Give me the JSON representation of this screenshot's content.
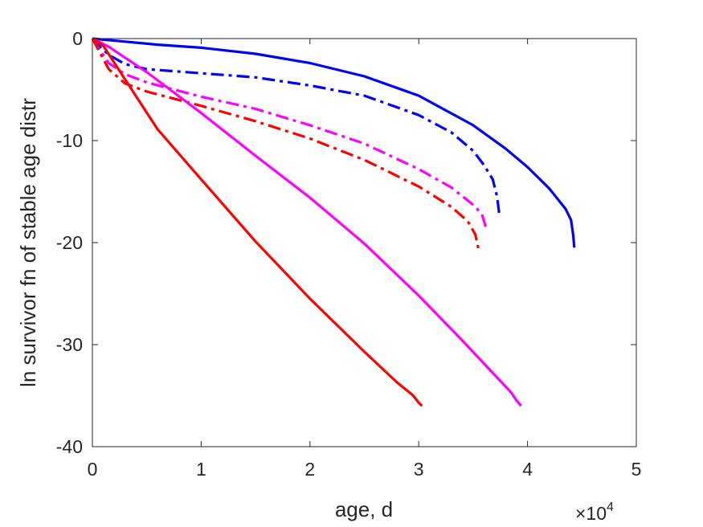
{
  "chart_data": {
    "type": "line",
    "title": "",
    "xlabel": "age, d",
    "ylabel": "ln survivor fn of stable age distr",
    "x_multiplier_label": {
      "base": "×10",
      "exponent": "4"
    },
    "xlim": [
      0,
      50000
    ],
    "ylim": [
      -40,
      0
    ],
    "xticks": [
      0,
      10000,
      20000,
      30000,
      40000,
      50000
    ],
    "xtick_labels": [
      "0",
      "1",
      "2",
      "3",
      "4",
      "5"
    ],
    "yticks": [
      0,
      -10,
      -20,
      -30,
      -40
    ],
    "ytick_labels": [
      "0",
      "-10",
      "-20",
      "-30",
      "-40"
    ],
    "grid": false,
    "legend": "none",
    "series": [
      {
        "color": "#0000ff",
        "style": "solid",
        "x": [
          0,
          3000,
          6000,
          10000,
          15000,
          20000,
          25000,
          30000,
          35000,
          38000,
          40000,
          42000,
          43500,
          44000,
          44200,
          44300
        ],
        "y": [
          0,
          -0.3,
          -0.6,
          -0.9,
          -1.5,
          -2.4,
          -3.7,
          -5.6,
          -8.5,
          -10.8,
          -12.6,
          -14.7,
          -16.7,
          -17.8,
          -19.3,
          -20.5
        ]
      },
      {
        "color": "#0000ff",
        "style": "dashdot",
        "x": [
          0,
          700,
          1500,
          3000,
          5000,
          10000,
          15000,
          20000,
          25000,
          30000,
          33000,
          35000,
          36000,
          36800,
          37200,
          37400
        ],
        "y": [
          0,
          -0.8,
          -1.6,
          -2.5,
          -3.0,
          -3.4,
          -3.8,
          -4.6,
          -5.6,
          -7.5,
          -9.2,
          -11.0,
          -12.4,
          -13.8,
          -15.5,
          -17.2
        ]
      },
      {
        "color": "#ff00ff",
        "style": "dashdot",
        "x": [
          0,
          600,
          1500,
          3000,
          5000,
          10000,
          15000,
          20000,
          25000,
          30000,
          33000,
          35000,
          35800,
          36200
        ],
        "y": [
          0,
          -1.0,
          -2.4,
          -3.5,
          -4.3,
          -5.7,
          -6.9,
          -8.5,
          -10.3,
          -12.8,
          -14.6,
          -16.3,
          -17.2,
          -18.6
        ]
      },
      {
        "color": "#ff0000",
        "style": "dashdot",
        "x": [
          0,
          600,
          1500,
          3000,
          5000,
          10000,
          15000,
          20000,
          25000,
          30000,
          33000,
          34500,
          35200,
          35500
        ],
        "y": [
          0,
          -1.2,
          -3.0,
          -4.4,
          -5.2,
          -6.6,
          -8.1,
          -9.8,
          -11.9,
          -14.5,
          -16.5,
          -17.9,
          -19.2,
          -20.7
        ]
      },
      {
        "color": "#ff00ff",
        "style": "solid",
        "x": [
          0,
          1500,
          5000,
          10000,
          15000,
          20000,
          25000,
          30000,
          34000,
          37000,
          38500,
          39000,
          39400
        ],
        "y": [
          0,
          -0.8,
          -3.3,
          -7.3,
          -11.5,
          -15.6,
          -20.1,
          -25.2,
          -29.6,
          -33.0,
          -34.7,
          -35.5,
          -36.0
        ]
      },
      {
        "color": "#ff0000",
        "style": "solid",
        "x": [
          0,
          1000,
          3000,
          6000,
          10000,
          15000,
          20000,
          25000,
          28000,
          29500,
          30000,
          30300
        ],
        "y": [
          0,
          -0.7,
          -4.0,
          -8.9,
          -13.8,
          -19.9,
          -25.5,
          -30.7,
          -33.7,
          -35.0,
          -35.7,
          -36.0
        ]
      }
    ]
  }
}
